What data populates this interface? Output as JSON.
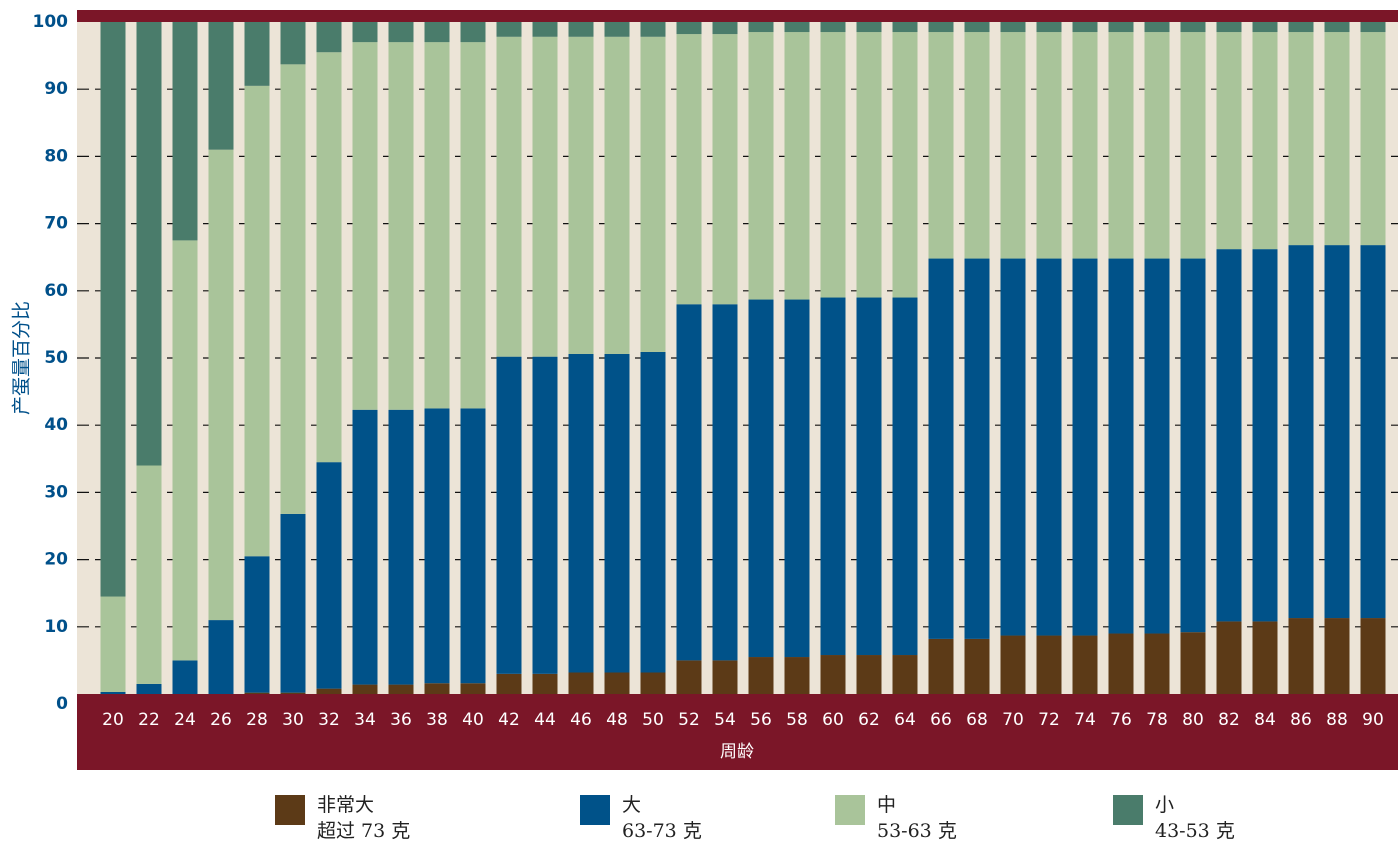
{
  "chart_data": {
    "type": "stacked-bar",
    "x_label": "周龄",
    "y_label": "产蛋量百分比",
    "categories": [
      "20",
      "22",
      "24",
      "26",
      "28",
      "30",
      "32",
      "34",
      "36",
      "38",
      "40",
      "42",
      "44",
      "46",
      "48",
      "50",
      "52",
      "54",
      "56",
      "58",
      "60",
      "62",
      "64",
      "66",
      "68",
      "70",
      "72",
      "74",
      "76",
      "78",
      "80",
      "82",
      "84",
      "86",
      "88",
      "90"
    ],
    "series": [
      {
        "name": "非常大",
        "sublabel": "超过 73 克",
        "color": "#5c3a17",
        "values": [
          0,
          0,
          0,
          0,
          0.2,
          0.2,
          0.8,
          1.4,
          1.4,
          1.6,
          1.6,
          3,
          3,
          3.2,
          3.2,
          3.2,
          5,
          5,
          5.5,
          5.5,
          5.8,
          5.8,
          5.8,
          8.2,
          8.2,
          8.7,
          8.7,
          8.7,
          9,
          9,
          9.2,
          10.8,
          10.8,
          11.3,
          11.3,
          11.3
        ]
      },
      {
        "name": "大",
        "sublabel": "63-73 克",
        "color": "#005289",
        "values": [
          0.3,
          1.5,
          5,
          11,
          20.3,
          26.6,
          33.7,
          40.9,
          40.9,
          40.9,
          40.9,
          47.2,
          47.2,
          47.4,
          47.4,
          47.7,
          53,
          53,
          53.2,
          53.2,
          53.2,
          53.2,
          53.2,
          56.6,
          56.6,
          56.1,
          56.1,
          56.1,
          55.8,
          55.8,
          55.6,
          55.4,
          55.4,
          55.5,
          55.5,
          55.5
        ]
      },
      {
        "name": "中",
        "sublabel": "53-63 克",
        "color": "#a9c49a",
        "values": [
          14.2,
          32.5,
          62.5,
          70,
          70,
          66.9,
          61,
          54.7,
          54.7,
          54.5,
          54.5,
          47.6,
          47.6,
          47.2,
          47.2,
          46.9,
          40.2,
          40.2,
          39.8,
          39.8,
          39.5,
          39.5,
          39.5,
          33.7,
          33.7,
          33.7,
          33.7,
          33.7,
          33.7,
          33.7,
          33.7,
          32.3,
          32.3,
          31.7,
          31.7,
          31.7
        ]
      },
      {
        "name": "小",
        "sublabel": "43-53 克",
        "color": "#4a7c6b",
        "values": [
          85.5,
          66,
          32.5,
          19,
          9.5,
          6.3,
          4.5,
          3,
          3,
          3,
          3,
          2.2,
          2.2,
          2.2,
          2.2,
          2.2,
          1.8,
          1.8,
          1.5,
          1.5,
          1.5,
          1.5,
          1.5,
          1.5,
          1.5,
          1.5,
          1.5,
          1.5,
          1.5,
          1.5,
          1.5,
          1.5,
          1.5,
          1.5,
          1.5,
          1.5
        ]
      }
    ],
    "ylim": [
      0,
      100
    ],
    "yticks": [
      0,
      10,
      20,
      30,
      40,
      50,
      60,
      70,
      80,
      90,
      100
    ],
    "grid": true
  }
}
